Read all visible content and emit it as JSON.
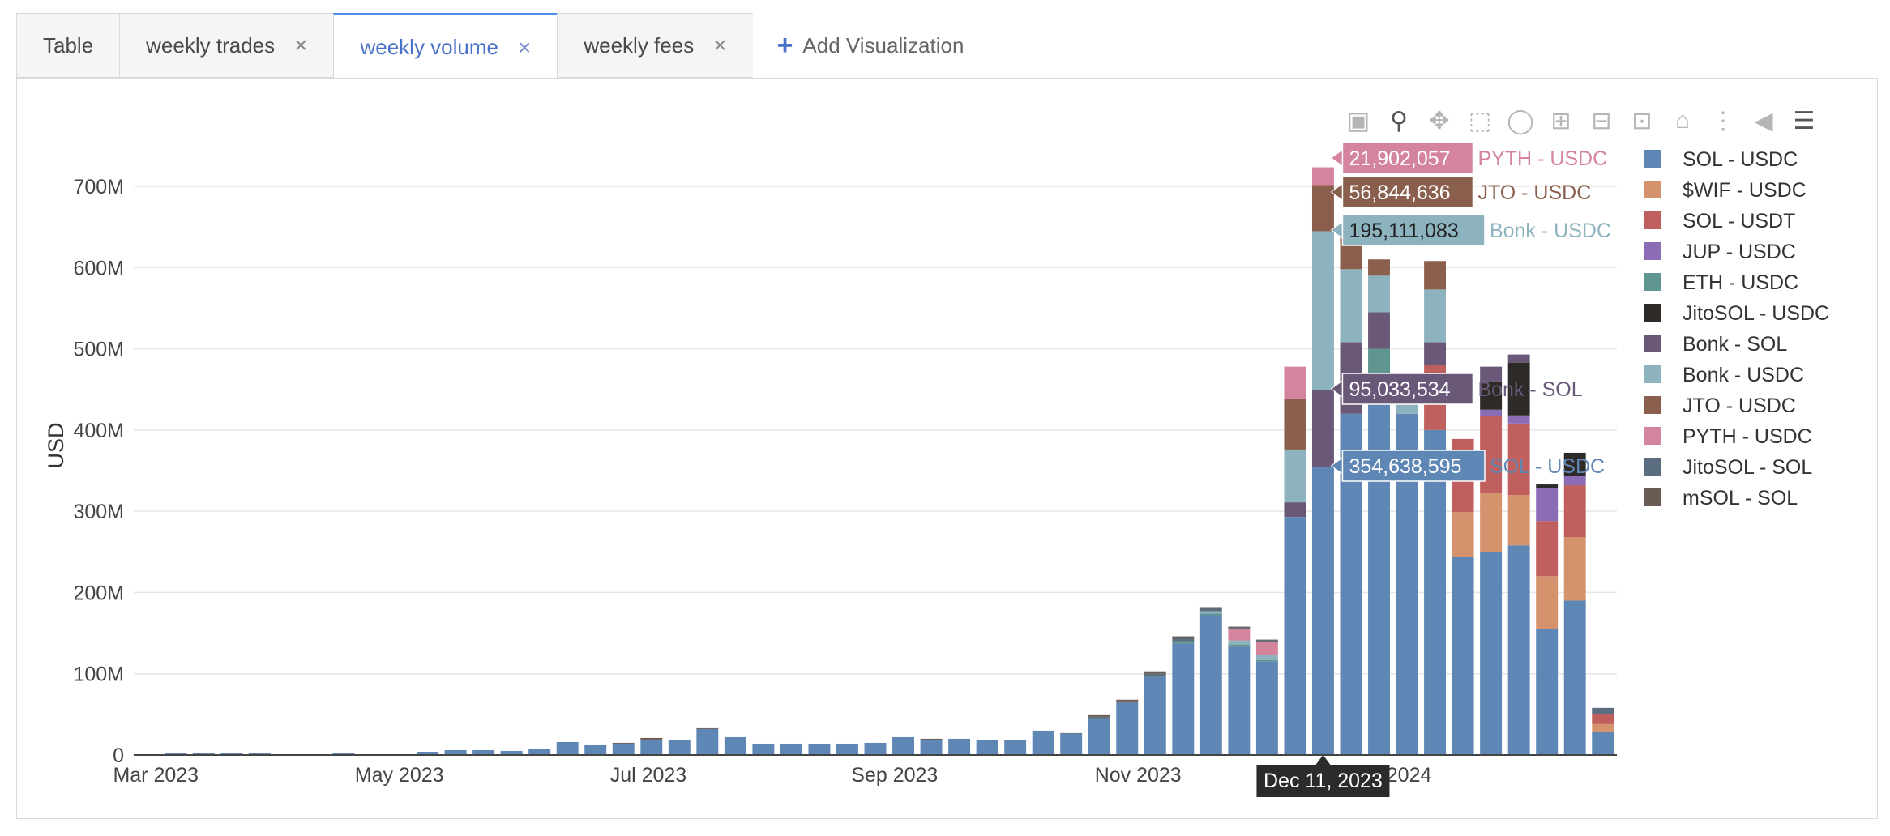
{
  "tabs": [
    {
      "label": "Table",
      "closable": false,
      "active": false
    },
    {
      "label": "weekly trades",
      "closable": true,
      "active": false
    },
    {
      "label": "weekly volume",
      "closable": true,
      "active": true
    },
    {
      "label": "weekly fees",
      "closable": true,
      "active": false
    }
  ],
  "add_visualization": {
    "label": "Add Visualization",
    "icon": "plus-icon"
  },
  "close_glyph": "×",
  "modebar_icons": [
    "camera-icon",
    "zoom-icon",
    "pan-icon",
    "box-select-icon",
    "lasso-icon",
    "zoom-in-icon",
    "zoom-out-icon",
    "autoscale-icon",
    "reset-axes-icon",
    "spike-lines-icon",
    "hover-closest-icon",
    "hover-compare-icon"
  ],
  "hover": {
    "date_label": "Dec 11, 2023",
    "items": [
      {
        "value": "21,902,057",
        "series": "PYTH - USDC"
      },
      {
        "value": "56,844,636",
        "series": "JTO - USDC"
      },
      {
        "value": "195,111,083",
        "series": "Bonk - USDC"
      },
      {
        "value": "95,033,534",
        "series": "Bonk - SOL"
      },
      {
        "value": "354,638,595",
        "series": "SOL - USDC"
      }
    ]
  },
  "chart_data": {
    "type": "bar",
    "stacked": true,
    "ylabel": "USD",
    "ylim": [
      0,
      750
    ],
    "y_unit": "M",
    "yticks": [
      0,
      100,
      200,
      300,
      400,
      500,
      600,
      700
    ],
    "ytick_labels": [
      "0",
      "100M",
      "200M",
      "300M",
      "400M",
      "500M",
      "600M",
      "700M"
    ],
    "xtick_labels": [
      {
        "label": "Mar 2023",
        "index": 0
      },
      {
        "label": "May 2023",
        "index": 8.7
      },
      {
        "label": "Jul 2023",
        "index": 17.6
      },
      {
        "label": "Sep 2023",
        "index": 26.4
      },
      {
        "label": "Nov 2023",
        "index": 35.1
      },
      {
        "label": "Jan 2024",
        "index": 44.1
      }
    ],
    "hovered_index": 42,
    "legend_position": "right",
    "grid": true,
    "series": [
      {
        "name": "SOL - USDC",
        "color": "#5f87b5",
        "values": [
          1,
          2,
          2,
          3,
          3,
          1,
          1,
          3,
          1,
          1,
          4,
          6,
          6,
          5,
          7,
          16,
          12,
          14,
          19,
          18,
          32,
          22,
          14,
          14,
          13,
          14,
          15,
          22,
          18,
          20,
          18,
          18,
          30,
          26,
          45,
          64,
          96,
          137,
          172,
          133,
          115,
          293,
          354.6,
          420,
          470,
          420,
          400,
          244,
          250,
          258,
          155,
          190,
          28
        ]
      },
      {
        "name": "$WIF - USDC",
        "color": "#d4926d",
        "values": [
          0,
          0,
          0,
          0,
          0,
          0,
          0,
          0,
          0,
          0,
          0,
          0,
          0,
          0,
          0,
          0,
          0,
          0,
          0,
          0,
          0,
          0,
          0,
          0,
          0,
          0,
          0,
          0,
          0,
          0,
          0,
          0,
          0,
          0,
          0,
          0,
          0,
          0,
          0,
          0,
          0,
          0,
          0,
          0,
          0,
          0,
          0,
          55,
          72,
          62,
          65,
          78,
          10
        ]
      },
      {
        "name": "SOL - USDT",
        "color": "#c0605e",
        "values": [
          0,
          0,
          0,
          0,
          0,
          0,
          0,
          0,
          0,
          0,
          0,
          0,
          0,
          0,
          0,
          0,
          0,
          0,
          0,
          0,
          0,
          0,
          0,
          0,
          0,
          0,
          0,
          0,
          0,
          0,
          0,
          0,
          0,
          0,
          0,
          0,
          0,
          0,
          0,
          0,
          0,
          0,
          0,
          0,
          0,
          0,
          80,
          90,
          95,
          88,
          68,
          64,
          12
        ]
      },
      {
        "name": "JUP - USDC",
        "color": "#8b6db5",
        "values": [
          0,
          0,
          0,
          0,
          0,
          0,
          0,
          0,
          0,
          0,
          0,
          0,
          0,
          0,
          0,
          0,
          0,
          0,
          0,
          0,
          0,
          0,
          0,
          0,
          0,
          0,
          0,
          0,
          0,
          0,
          0,
          0,
          0,
          0,
          0,
          0,
          0,
          0,
          0,
          0,
          0,
          0,
          0,
          0,
          0,
          0,
          0,
          0,
          8,
          10,
          40,
          12,
          0
        ]
      },
      {
        "name": "ETH - USDC",
        "color": "#5e9590",
        "values": [
          0,
          0,
          0,
          0,
          0,
          0,
          0,
          0,
          0,
          0,
          0,
          0,
          0,
          0,
          0,
          0,
          0,
          0,
          0,
          0,
          0,
          0,
          0,
          0,
          0,
          0,
          0,
          0,
          0,
          0,
          0,
          0,
          0,
          0,
          0,
          0,
          0,
          3,
          2,
          3,
          2,
          0,
          0,
          0,
          30,
          0,
          0,
          0,
          0,
          0,
          0,
          0,
          0
        ]
      },
      {
        "name": "JitoSOL - USDC",
        "color": "#2e2a28",
        "values": [
          0,
          0,
          0,
          0,
          0,
          0,
          0,
          0,
          0,
          0,
          0,
          0,
          0,
          0,
          0,
          0,
          0,
          0,
          0,
          0,
          0,
          0,
          0,
          0,
          0,
          0,
          0,
          0,
          0,
          0,
          0,
          0,
          0,
          0,
          0,
          0,
          0,
          0,
          0,
          0,
          0,
          0,
          0,
          0,
          0,
          0,
          0,
          0,
          35,
          65,
          5,
          28,
          0
        ]
      },
      {
        "name": "Bonk - SOL",
        "color": "#6a5879",
        "values": [
          0,
          0,
          0,
          0,
          0,
          0,
          0,
          0,
          0,
          0,
          0,
          0,
          0,
          0,
          0,
          0,
          0,
          0,
          0,
          0,
          0,
          0,
          0,
          0,
          0,
          0,
          0,
          0,
          0,
          0,
          0,
          0,
          0,
          0,
          0,
          0,
          0,
          0,
          0,
          0,
          0,
          18,
          95,
          88,
          45,
          0,
          28,
          0,
          18,
          10,
          0,
          0,
          0
        ]
      },
      {
        "name": "Bonk - USDC",
        "color": "#8db3bf",
        "values": [
          0,
          0,
          0,
          0,
          0,
          0,
          0,
          0,
          0,
          0,
          0,
          0,
          0,
          0,
          0,
          0,
          0,
          0,
          0,
          0,
          0,
          0,
          0,
          0,
          0,
          0,
          0,
          0,
          0,
          0,
          0,
          0,
          0,
          0,
          0,
          0,
          0,
          0,
          3,
          5,
          6,
          65,
          195.1,
          90,
          45,
          30,
          65,
          0,
          0,
          0,
          0,
          0,
          0
        ]
      },
      {
        "name": "JTO - USDC",
        "color": "#8b5f4d",
        "values": [
          0,
          0,
          0,
          0,
          0,
          0,
          0,
          0,
          0,
          0,
          0,
          0,
          0,
          0,
          0,
          0,
          0,
          0,
          0,
          0,
          0,
          0,
          0,
          0,
          0,
          0,
          0,
          0,
          0,
          0,
          0,
          0,
          0,
          0,
          0,
          0,
          0,
          0,
          0,
          0,
          0,
          62,
          56.8,
          50,
          20,
          15,
          35,
          0,
          0,
          0,
          0,
          0,
          0
        ]
      },
      {
        "name": "PYTH - USDC",
        "color": "#d4849c",
        "values": [
          0,
          0,
          0,
          0,
          0,
          0,
          0,
          0,
          0,
          0,
          0,
          0,
          0,
          0,
          0,
          0,
          0,
          0,
          0,
          0,
          0,
          0,
          0,
          0,
          0,
          0,
          0,
          0,
          0,
          0,
          0,
          0,
          0,
          0,
          0,
          0,
          0,
          0,
          0,
          14,
          16,
          40,
          21.9,
          0,
          0,
          0,
          0,
          0,
          0,
          0,
          0,
          0,
          0
        ]
      },
      {
        "name": "JitoSOL - SOL",
        "color": "#5b6e80",
        "values": [
          0,
          0,
          0,
          0,
          0,
          0,
          0,
          0,
          0,
          0,
          0,
          0,
          0,
          0,
          0,
          0,
          0,
          0,
          0,
          0,
          0,
          0,
          0,
          0,
          0,
          0,
          0,
          0,
          0,
          0,
          0,
          0,
          0,
          1,
          2,
          2,
          4,
          4,
          3,
          2,
          2,
          0,
          0,
          0,
          0,
          0,
          0,
          0,
          0,
          0,
          0,
          0,
          8
        ]
      },
      {
        "name": "mSOL - SOL",
        "color": "#6b5b55",
        "values": [
          0,
          0,
          0,
          0,
          0,
          0,
          0,
          0,
          0,
          0,
          0,
          0,
          0,
          0,
          0,
          0,
          0,
          1,
          2,
          0,
          1,
          0,
          0,
          0,
          0,
          0,
          0,
          0,
          2,
          0,
          0,
          0,
          0,
          0,
          2,
          2,
          3,
          2,
          2,
          1,
          1,
          0,
          0,
          0,
          0,
          0,
          0,
          0,
          0,
          0,
          0,
          0,
          0
        ]
      }
    ]
  }
}
